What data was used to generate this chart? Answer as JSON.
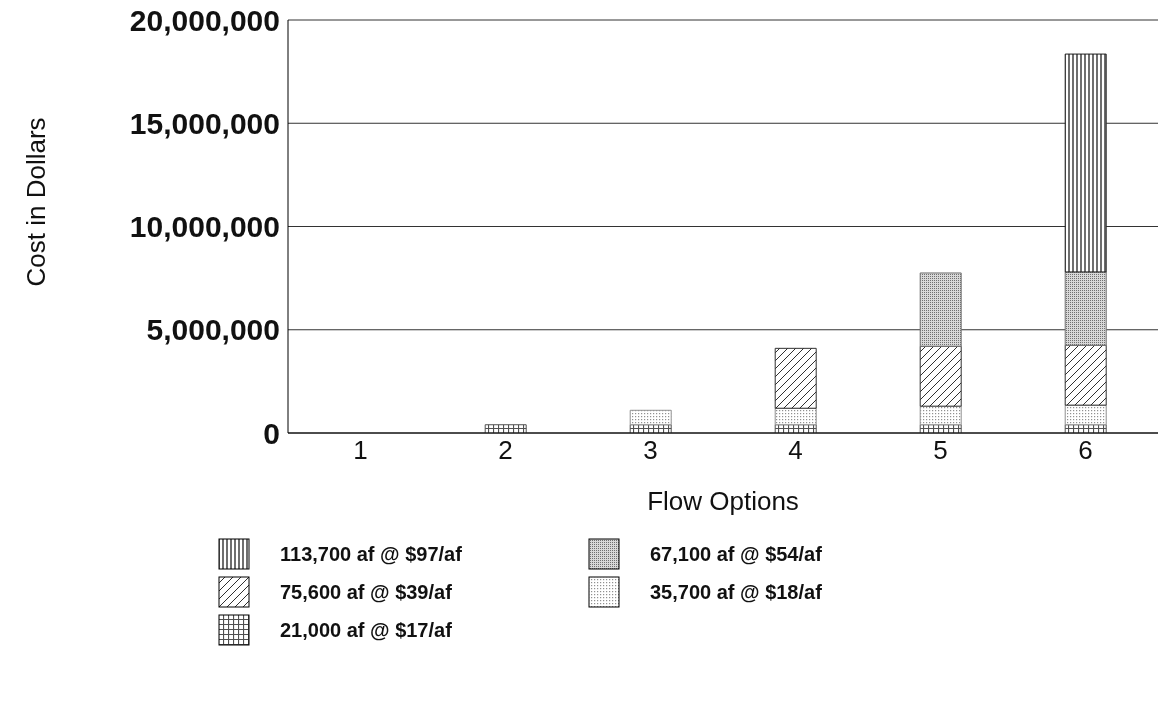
{
  "chart_data": {
    "type": "bar",
    "stacked": true,
    "xlabel": "Flow Options",
    "ylabel": "Cost in Dollars",
    "categories": [
      "1",
      "2",
      "3",
      "4",
      "5",
      "6"
    ],
    "series": [
      {
        "name": "21,000 af @ $17/af",
        "color": "#505050",
        "values": [
          0,
          400000,
          400000,
          400000,
          400000,
          400000
        ]
      },
      {
        "name": "35,700 af @ $18/af",
        "color": "#909090",
        "values": [
          0,
          0,
          700000,
          800000,
          900000,
          950000
        ]
      },
      {
        "name": "75,600 af @ $39/af",
        "color": "#303030",
        "values": [
          0,
          0,
          0,
          2900000,
          2900000,
          2900000
        ]
      },
      {
        "name": "67,100 af @ $54/af",
        "color": "#707070",
        "values": [
          0,
          0,
          0,
          0,
          3550000,
          3550000
        ]
      },
      {
        "name": "113,700 af @ $97/af",
        "color": "#202020",
        "values": [
          0,
          0,
          0,
          0,
          0,
          10550000
        ]
      }
    ],
    "ylim": [
      0,
      20000000
    ],
    "yticks": [
      0,
      {
        "value": 5000000,
        "label": "5,000,000"
      },
      {
        "value": 10000000,
        "label": "10,000,000"
      },
      {
        "value": 15000000,
        "label": "15,000,000"
      },
      {
        "value": 20000000,
        "label": "20,000,000"
      }
    ],
    "grid": "y",
    "legend": "bottom"
  }
}
